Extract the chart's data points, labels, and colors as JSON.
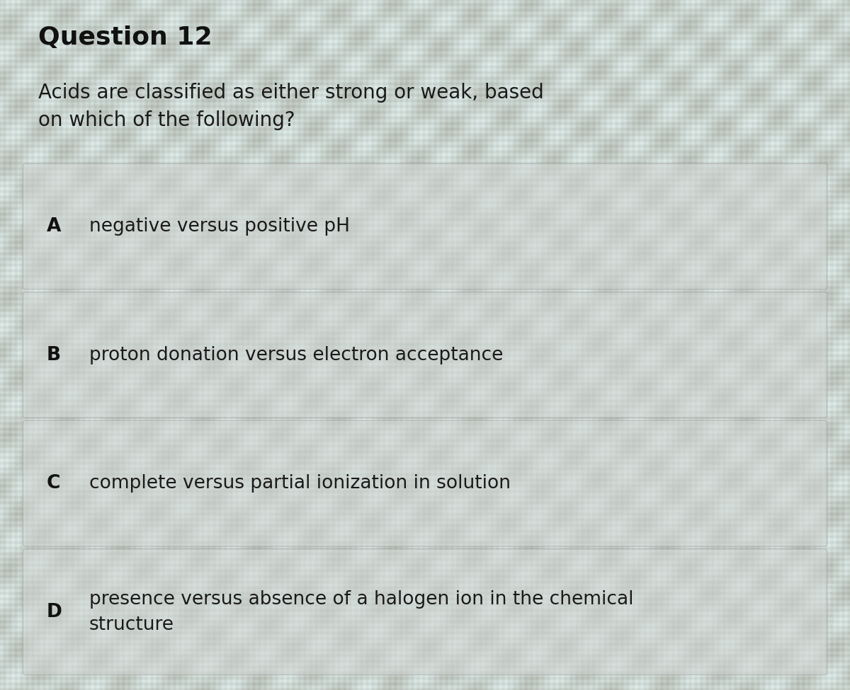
{
  "title": "Question 12",
  "question_line1": "Acids are classified as either strong or weak, based",
  "question_line2": "on which of the following?",
  "options": [
    {
      "letter": "A",
      "text": "negative versus positive pH",
      "multiline": false
    },
    {
      "letter": "B",
      "text": "proton donation versus electron acceptance",
      "multiline": false
    },
    {
      "letter": "C",
      "text": "complete versus partial ionization in solution",
      "multiline": false
    },
    {
      "letter": "D",
      "text": "presence versus absence of a halogen ion in the chemical\nstructure",
      "multiline": true
    }
  ],
  "bg_color_base": "#c8cdd4",
  "bg_color_light": "#d8e0dc",
  "box_bg_color": "#d0d5d2",
  "box_border_color": "#999999",
  "title_color": "#111111",
  "question_color": "#1a1a1a",
  "option_letter_color": "#111111",
  "option_text_color": "#1a1a1a",
  "title_fontsize": 26,
  "question_fontsize": 20,
  "option_fontsize": 19
}
